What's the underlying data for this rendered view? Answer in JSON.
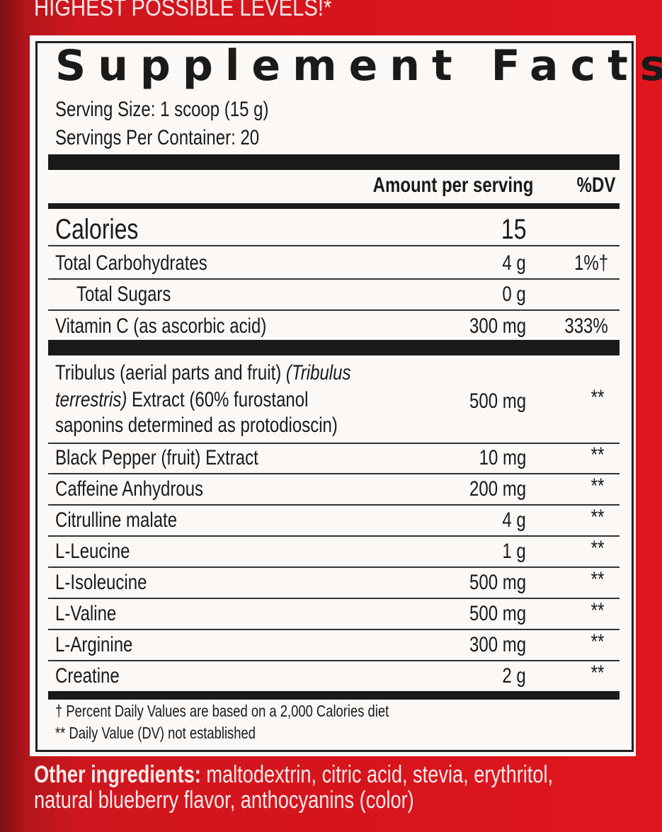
{
  "banner": "HIGHEST POSSIBLE LEVELS!*",
  "title": "Supplement Facts",
  "serving_size": "Serving Size: 1 scoop (15 g)",
  "servings_per_container": "Servings Per Container: 20",
  "headers": {
    "amount": "Amount per serving",
    "dv": "%DV"
  },
  "calories": {
    "label": "Calories",
    "amount": "15"
  },
  "nutrients": [
    {
      "name": "Total Carbohydrates",
      "amount": "4 g",
      "dv": "1%†"
    },
    {
      "name": "Total Sugars",
      "amount": "0 g",
      "dv": ""
    },
    {
      "name": "Vitamin C (as ascorbic acid)",
      "amount": "300 mg",
      "dv": "333%"
    }
  ],
  "tribulus": {
    "line1": "Tribulus (aerial parts and fruit) ",
    "line1_italic": "(Tribulus",
    "line2_italic": "terrestris)",
    "line2": " Extract (60% furostanol",
    "line3": "saponins determined as protodioscin)",
    "amount": "500 mg",
    "dv": "**"
  },
  "ingredients": [
    {
      "name": "Black Pepper (fruit) Extract",
      "amount": "10 mg",
      "dv": "**"
    },
    {
      "name": "Caffeine Anhydrous",
      "amount": "200 mg",
      "dv": "**"
    },
    {
      "name": "Citrulline malate",
      "amount": "4 g",
      "dv": "**"
    },
    {
      "name": "L-Leucine",
      "amount": "1 g",
      "dv": "**"
    },
    {
      "name": "L-Isoleucine",
      "amount": "500 mg",
      "dv": "**"
    },
    {
      "name": "L-Valine",
      "amount": "500 mg",
      "dv": "**"
    },
    {
      "name": "L-Arginine",
      "amount": "300 mg",
      "dv": "**"
    },
    {
      "name": "Creatine",
      "amount": "2 g",
      "dv": "**"
    }
  ],
  "footnotes": [
    "† Percent Daily Values are based on a 2,000 Calories diet",
    "** Daily Value (DV) not established"
  ],
  "other": {
    "label": "Other ingredients:",
    "line1": " maltodextrin, citric acid, stevia, erythritol,",
    "line2": "natural blueberry flavor, anthocyanins (color)"
  }
}
